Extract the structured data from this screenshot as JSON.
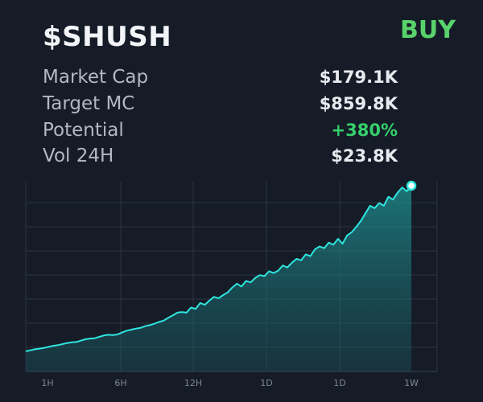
{
  "header": {
    "ticker": "$SHUSH",
    "buy_label": "BUY"
  },
  "stats": [
    {
      "label": "Market Cap",
      "value": "$179.1K",
      "tone": "neutral"
    },
    {
      "label": "Target MC",
      "value": "$859.8K",
      "tone": "neutral"
    },
    {
      "label": "Potential",
      "value": "+380%",
      "tone": "positive"
    },
    {
      "label": "Vol 24H",
      "value": "$23.8K",
      "tone": "neutral"
    }
  ],
  "colors": {
    "background": "#161c27",
    "line": "#2ee6e0",
    "positive": "#35d06b",
    "buy": "#58d36b"
  },
  "chart_data": {
    "type": "area",
    "x_ticks": [
      "1H",
      "6H",
      "12H",
      "1D",
      "1D",
      "1W"
    ],
    "values": [
      100,
      103,
      106,
      108,
      110,
      113,
      116,
      118,
      121,
      124,
      126,
      127,
      131,
      135,
      137,
      138,
      142,
      146,
      148,
      147,
      149,
      155,
      160,
      163,
      166,
      168,
      173,
      176,
      180,
      185,
      189,
      197,
      204,
      212,
      214,
      212,
      227,
      223,
      240,
      235,
      247,
      258,
      254,
      263,
      271,
      285,
      296,
      288,
      304,
      300,
      313,
      321,
      318,
      332,
      327,
      334,
      349,
      343,
      357,
      368,
      364,
      381,
      376,
      396,
      404,
      399,
      415,
      409,
      426,
      412,
      436,
      445,
      461,
      478,
      500,
      522,
      515,
      530,
      522,
      548,
      540,
      560,
      575,
      564,
      580
    ],
    "grid": true,
    "end_marker": true
  }
}
